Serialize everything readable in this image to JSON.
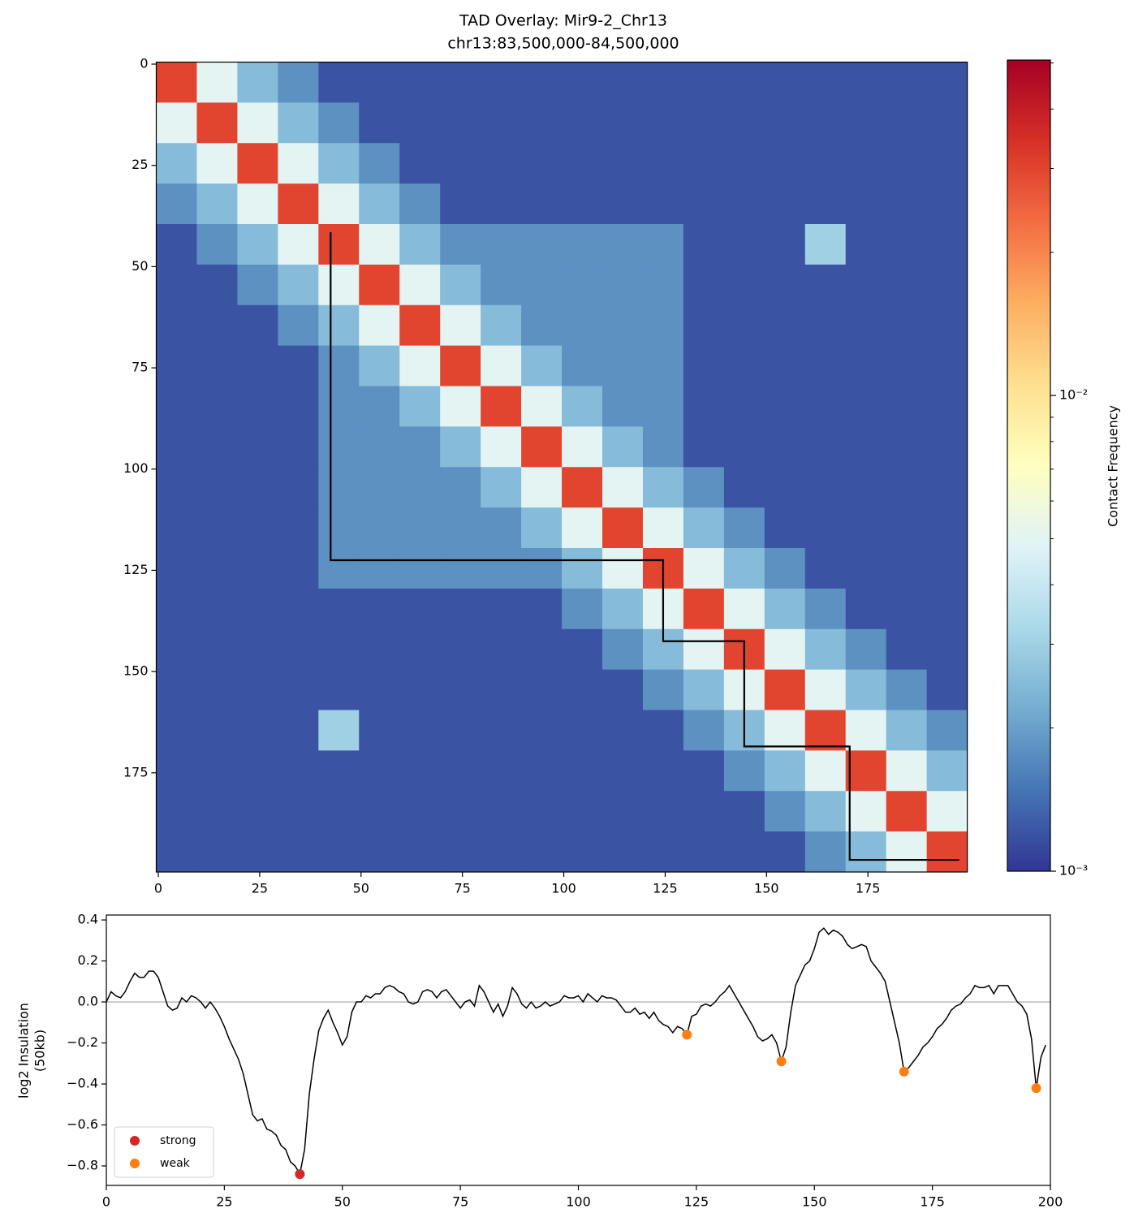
{
  "chart_data": [
    {
      "type": "heatmap",
      "title": "TAD Overlay: Mir9-2_Chr13",
      "subtitle": "chr13:83,500,000-84,500,000",
      "xlim": [
        -0.5,
        199.5
      ],
      "ylim": [
        199.5,
        -0.5
      ],
      "xticks": [
        0,
        25,
        50,
        75,
        100,
        125,
        150,
        175
      ],
      "yticks": [
        0,
        25,
        50,
        75,
        100,
        125,
        150,
        175
      ],
      "colormap": "RdYlBu_r",
      "log_scale": true,
      "clim": [
        0.001,
        0.0507
      ],
      "cticks": [
        {
          "value": 0.001,
          "label": "10⁻³"
        },
        {
          "value": 0.01,
          "label": "10⁻²"
        }
      ],
      "cticks_minor": [
        0.002,
        0.003,
        0.004,
        0.005,
        0.006,
        0.007,
        0.008,
        0.009,
        0.02,
        0.03,
        0.04,
        0.05
      ],
      "colorbar_label": "Contact Frequency",
      "matrix": [
        [
          0.03,
          0.005,
          0.0025,
          0.0018,
          0.0012,
          0.0012,
          0.0012,
          0.0012,
          0.0012,
          0.0012,
          0.0012,
          0.0012,
          0.0012,
          0.0012,
          0.0012,
          0.0012,
          0.0012,
          0.0012,
          0.0012,
          0.0012
        ],
        [
          0.005,
          0.03,
          0.005,
          0.0025,
          0.0018,
          0.0012,
          0.0012,
          0.0012,
          0.0012,
          0.0012,
          0.0012,
          0.0012,
          0.0012,
          0.0012,
          0.0012,
          0.0012,
          0.0012,
          0.0012,
          0.0012,
          0.0012
        ],
        [
          0.0025,
          0.005,
          0.03,
          0.005,
          0.0025,
          0.0018,
          0.0012,
          0.0012,
          0.0012,
          0.0012,
          0.0012,
          0.0012,
          0.0012,
          0.0012,
          0.0012,
          0.0012,
          0.0012,
          0.0012,
          0.0012,
          0.0012
        ],
        [
          0.0018,
          0.0025,
          0.005,
          0.03,
          0.005,
          0.0025,
          0.0018,
          0.0012,
          0.0012,
          0.0012,
          0.0012,
          0.0012,
          0.0012,
          0.0012,
          0.0012,
          0.0012,
          0.0012,
          0.0012,
          0.0012,
          0.0012
        ],
        [
          0.0012,
          0.0018,
          0.0025,
          0.005,
          0.03,
          0.005,
          0.0025,
          0.0018,
          0.0018,
          0.0018,
          0.0018,
          0.0018,
          0.0018,
          0.0012,
          0.0012,
          0.0012,
          0.003,
          0.0012,
          0.0012,
          0.0012
        ],
        [
          0.0012,
          0.0012,
          0.0018,
          0.0025,
          0.005,
          0.03,
          0.005,
          0.0025,
          0.0018,
          0.0018,
          0.0018,
          0.0018,
          0.0018,
          0.0012,
          0.0012,
          0.0012,
          0.0012,
          0.0012,
          0.0012,
          0.0012
        ],
        [
          0.0012,
          0.0012,
          0.0012,
          0.0018,
          0.0025,
          0.005,
          0.03,
          0.005,
          0.0025,
          0.0018,
          0.0018,
          0.0018,
          0.0018,
          0.0012,
          0.0012,
          0.0012,
          0.0012,
          0.0012,
          0.0012,
          0.0012
        ],
        [
          0.0012,
          0.0012,
          0.0012,
          0.0012,
          0.0018,
          0.0025,
          0.005,
          0.03,
          0.005,
          0.0025,
          0.0018,
          0.0018,
          0.0018,
          0.0012,
          0.0012,
          0.0012,
          0.0012,
          0.0012,
          0.0012,
          0.0012
        ],
        [
          0.0012,
          0.0012,
          0.0012,
          0.0012,
          0.0018,
          0.0018,
          0.0025,
          0.005,
          0.03,
          0.005,
          0.0025,
          0.0018,
          0.0018,
          0.0012,
          0.0012,
          0.0012,
          0.0012,
          0.0012,
          0.0012,
          0.0012
        ],
        [
          0.0012,
          0.0012,
          0.0012,
          0.0012,
          0.0018,
          0.0018,
          0.0018,
          0.0025,
          0.005,
          0.03,
          0.005,
          0.0025,
          0.0018,
          0.0012,
          0.0012,
          0.0012,
          0.0012,
          0.0012,
          0.0012,
          0.0012
        ],
        [
          0.0012,
          0.0012,
          0.0012,
          0.0012,
          0.0018,
          0.0018,
          0.0018,
          0.0018,
          0.0025,
          0.005,
          0.03,
          0.005,
          0.0025,
          0.0018,
          0.0012,
          0.0012,
          0.0012,
          0.0012,
          0.0012,
          0.0012
        ],
        [
          0.0012,
          0.0012,
          0.0012,
          0.0012,
          0.0018,
          0.0018,
          0.0018,
          0.0018,
          0.0018,
          0.0025,
          0.005,
          0.03,
          0.005,
          0.0025,
          0.0018,
          0.0012,
          0.0012,
          0.0012,
          0.0012,
          0.0012
        ],
        [
          0.0012,
          0.0012,
          0.0012,
          0.0012,
          0.0018,
          0.0018,
          0.0018,
          0.0018,
          0.0018,
          0.0018,
          0.0025,
          0.005,
          0.03,
          0.005,
          0.0025,
          0.0018,
          0.0012,
          0.0012,
          0.0012,
          0.0012
        ],
        [
          0.0012,
          0.0012,
          0.0012,
          0.0012,
          0.0012,
          0.0012,
          0.0012,
          0.0012,
          0.0012,
          0.0012,
          0.0018,
          0.0025,
          0.005,
          0.03,
          0.005,
          0.0025,
          0.0018,
          0.0012,
          0.0012,
          0.0012
        ],
        [
          0.0012,
          0.0012,
          0.0012,
          0.0012,
          0.0012,
          0.0012,
          0.0012,
          0.0012,
          0.0012,
          0.0012,
          0.0012,
          0.0018,
          0.0025,
          0.005,
          0.03,
          0.005,
          0.0025,
          0.0018,
          0.0012,
          0.0012
        ],
        [
          0.0012,
          0.0012,
          0.0012,
          0.0012,
          0.0012,
          0.0012,
          0.0012,
          0.0012,
          0.0012,
          0.0012,
          0.0012,
          0.0012,
          0.0018,
          0.0025,
          0.005,
          0.03,
          0.005,
          0.0025,
          0.0018,
          0.0012
        ],
        [
          0.0012,
          0.0012,
          0.0012,
          0.0012,
          0.003,
          0.0012,
          0.0012,
          0.0012,
          0.0012,
          0.0012,
          0.0012,
          0.0012,
          0.0012,
          0.0018,
          0.0025,
          0.005,
          0.03,
          0.005,
          0.0025,
          0.0018
        ],
        [
          0.0012,
          0.0012,
          0.0012,
          0.0012,
          0.0012,
          0.0012,
          0.0012,
          0.0012,
          0.0012,
          0.0012,
          0.0012,
          0.0012,
          0.0012,
          0.0012,
          0.0018,
          0.0025,
          0.005,
          0.03,
          0.005,
          0.0025
        ],
        [
          0.0012,
          0.0012,
          0.0012,
          0.0012,
          0.0012,
          0.0012,
          0.0012,
          0.0012,
          0.0012,
          0.0012,
          0.0012,
          0.0012,
          0.0012,
          0.0012,
          0.0012,
          0.0018,
          0.0025,
          0.005,
          0.03,
          0.005
        ],
        [
          0.0012,
          0.0012,
          0.0012,
          0.0012,
          0.0012,
          0.0012,
          0.0012,
          0.0012,
          0.0012,
          0.0012,
          0.0012,
          0.0012,
          0.0012,
          0.0012,
          0.0012,
          0.0012,
          0.0018,
          0.0025,
          0.005,
          0.03
        ]
      ],
      "tad_boundaries": {
        "color": "#000000",
        "x": [
          42.5,
          42.5,
          124.5,
          124.5,
          144.5,
          144.5,
          170.5,
          170.5,
          197.5
        ],
        "y": [
          41.5,
          122.5,
          122.5,
          142.5,
          142.5,
          168.5,
          168.5,
          196.5,
          196.5
        ]
      }
    },
    {
      "type": "line",
      "ylabel": [
        "log2 Insulation",
        "(50kb)"
      ],
      "xlim": [
        0,
        200
      ],
      "ylim": [
        -0.895,
        0.424
      ],
      "xticks": [
        0,
        25,
        50,
        75,
        100,
        125,
        150,
        175,
        200
      ],
      "yticks": [
        {
          "value": -0.8,
          "label": "−0.8"
        },
        {
          "value": -0.6,
          "label": "−0.6"
        },
        {
          "value": -0.4,
          "label": "−0.4"
        },
        {
          "value": -0.2,
          "label": "−0.2"
        },
        {
          "value": 0,
          "label": "0.0"
        },
        0.2,
        0.4
      ],
      "hline": 0,
      "legend": "lower left",
      "line": {
        "color": "#000000",
        "x": [
          0,
          1,
          2,
          3,
          4,
          5,
          6,
          7,
          8,
          9,
          10,
          11,
          12,
          13,
          14,
          15,
          16,
          17,
          18,
          19,
          20,
          21,
          22,
          23,
          24,
          25,
          26,
          27,
          28,
          29,
          30,
          31,
          32,
          33,
          34,
          35,
          36,
          37,
          38,
          39,
          40,
          41,
          42,
          43,
          44,
          45,
          46,
          47,
          48,
          49,
          50,
          51,
          52,
          53,
          54,
          55,
          56,
          57,
          58,
          59,
          60,
          61,
          62,
          63,
          64,
          65,
          66,
          67,
          68,
          69,
          70,
          71,
          72,
          73,
          74,
          75,
          76,
          77,
          78,
          79,
          80,
          81,
          82,
          83,
          84,
          85,
          86,
          87,
          88,
          89,
          90,
          91,
          92,
          93,
          94,
          95,
          96,
          97,
          98,
          99,
          100,
          101,
          102,
          103,
          104,
          105,
          106,
          107,
          108,
          109,
          110,
          111,
          112,
          113,
          114,
          115,
          116,
          117,
          118,
          119,
          120,
          121,
          122,
          123,
          124,
          125,
          126,
          127,
          128,
          129,
          130,
          131,
          132,
          133,
          134,
          135,
          136,
          137,
          138,
          139,
          140,
          141,
          142,
          143,
          144,
          145,
          146,
          147,
          148,
          149,
          150,
          151,
          152,
          153,
          154,
          155,
          156,
          157,
          158,
          159,
          160,
          161,
          162,
          163,
          164,
          165,
          166,
          167,
          168,
          169,
          170,
          171,
          172,
          173,
          174,
          175,
          176,
          177,
          178,
          179,
          180,
          181,
          182,
          183,
          184,
          185,
          186,
          187,
          188,
          189,
          190,
          191,
          192,
          193,
          194,
          195,
          196,
          197,
          198,
          199
        ],
        "values": [
          0.0,
          0.05,
          0.03,
          0.02,
          0.05,
          0.1,
          0.14,
          0.12,
          0.12,
          0.15,
          0.15,
          0.12,
          0.05,
          -0.02,
          -0.04,
          -0.03,
          0.02,
          0.0,
          0.03,
          0.02,
          0.0,
          -0.03,
          0.0,
          -0.03,
          -0.07,
          -0.12,
          -0.18,
          -0.23,
          -0.28,
          -0.35,
          -0.45,
          -0.55,
          -0.58,
          -0.57,
          -0.62,
          -0.63,
          -0.65,
          -0.7,
          -0.72,
          -0.78,
          -0.8,
          -0.84,
          -0.72,
          -0.45,
          -0.28,
          -0.14,
          -0.08,
          -0.04,
          -0.1,
          -0.15,
          -0.21,
          -0.17,
          -0.05,
          0.0,
          0.0,
          0.03,
          0.02,
          0.04,
          0.04,
          0.07,
          0.08,
          0.07,
          0.05,
          0.04,
          0.0,
          -0.01,
          0.0,
          0.05,
          0.06,
          0.05,
          0.02,
          0.05,
          0.06,
          0.03,
          0.0,
          -0.03,
          0.0,
          0.01,
          -0.02,
          0.08,
          0.05,
          0.0,
          -0.05,
          -0.01,
          -0.07,
          -0.02,
          0.07,
          0.04,
          -0.01,
          -0.03,
          0.0,
          -0.03,
          -0.02,
          0.0,
          -0.02,
          -0.01,
          0.0,
          0.03,
          0.02,
          0.02,
          0.03,
          0.0,
          0.04,
          0.02,
          0.0,
          0.03,
          0.02,
          0.02,
          0.01,
          -0.02,
          -0.05,
          -0.05,
          -0.03,
          -0.06,
          -0.05,
          -0.08,
          -0.05,
          -0.09,
          -0.11,
          -0.12,
          -0.15,
          -0.12,
          -0.13,
          -0.16,
          -0.07,
          -0.06,
          -0.02,
          -0.01,
          -0.02,
          0.0,
          0.03,
          0.05,
          0.08,
          0.04,
          0.0,
          -0.04,
          -0.08,
          -0.12,
          -0.17,
          -0.19,
          -0.18,
          -0.16,
          -0.2,
          -0.29,
          -0.22,
          -0.05,
          0.08,
          0.13,
          0.18,
          0.2,
          0.26,
          0.34,
          0.36,
          0.33,
          0.35,
          0.34,
          0.32,
          0.28,
          0.26,
          0.27,
          0.28,
          0.27,
          0.2,
          0.17,
          0.14,
          0.1,
          0.0,
          -0.1,
          -0.2,
          -0.34,
          -0.32,
          -0.29,
          -0.26,
          -0.22,
          -0.2,
          -0.17,
          -0.13,
          -0.11,
          -0.08,
          -0.04,
          -0.02,
          -0.01,
          0.02,
          0.04,
          0.08,
          0.07,
          0.07,
          0.08,
          0.04,
          0.08,
          0.08,
          0.08,
          0.04,
          0.0,
          -0.02,
          -0.06,
          -0.18,
          -0.42,
          -0.27,
          -0.21
        ]
      },
      "series": [
        {
          "name": "strong",
          "color": "#d62728",
          "x": [
            41
          ],
          "values": [
            -0.84
          ]
        },
        {
          "name": "weak",
          "color": "#ff7f0e",
          "x": [
            123,
            143,
            169,
            197
          ],
          "values": [
            -0.16,
            -0.29,
            -0.34,
            -0.42
          ]
        }
      ]
    }
  ]
}
